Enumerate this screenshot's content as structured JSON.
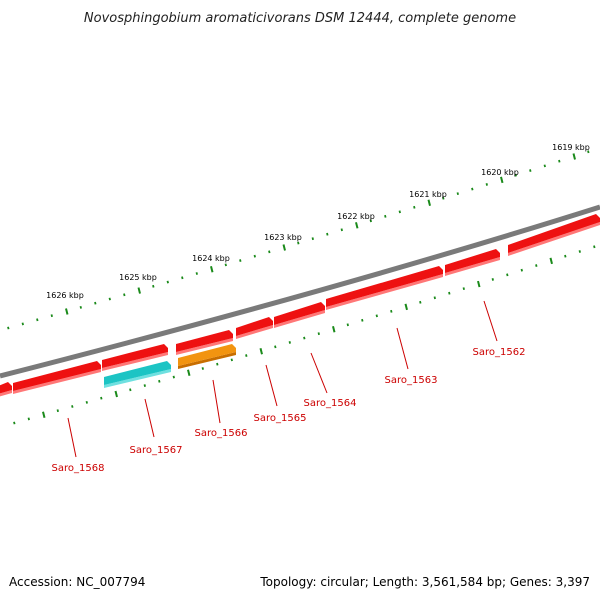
{
  "title": "Novosphingobium aromaticivorans DSM 12444, complete genome",
  "footer": {
    "accession": "Accession: NC_007794",
    "summary": "Topology: circular; Length: 3,561,584 bp; Genes: 3,397"
  },
  "colors": {
    "backbone": "#7a7a7a",
    "tick": "#1a8a1a",
    "gene_default": "#ee1111",
    "gene_cyan": "#1cc4c4",
    "gene_orange": "#f29410",
    "label": "#cc0000"
  },
  "kbp_labels": [
    "1619 kbp",
    "1620 kbp",
    "1621 kbp",
    "1622 kbp",
    "1623 kbp",
    "1624 kbp",
    "1625 kbp",
    "1626 kbp"
  ],
  "gene_labels": [
    "Saro_1562",
    "Saro_1563",
    "Saro_1564",
    "Saro_1565",
    "Saro_1566",
    "Saro_1567",
    "Saro_1568"
  ]
}
